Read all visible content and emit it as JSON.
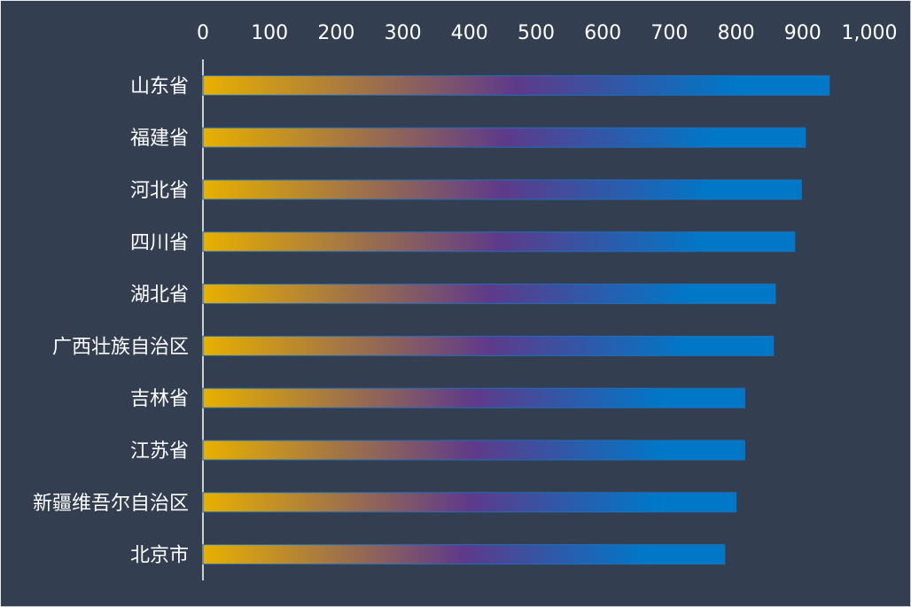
{
  "chart_data": {
    "type": "bar",
    "orientation": "horizontal",
    "categories": [
      "山东省",
      "福建省",
      "河北省",
      "四川省",
      "湖北省",
      "广西壮族自治区",
      "吉林省",
      "江苏省",
      "新疆维吾尔自治区",
      "北京市"
    ],
    "values": [
      940,
      904,
      898,
      888,
      859,
      856,
      813,
      813,
      800,
      783
    ],
    "xlim": [
      0,
      1000
    ],
    "xticks": [
      "0",
      "100",
      "200",
      "300",
      "400",
      "500",
      "600",
      "700",
      "800",
      "900",
      "1,000"
    ],
    "xaxis_position": "top",
    "grid": false,
    "legend": "none",
    "gradient_colors": [
      "#e8b000",
      "#5e3a8a",
      "#0078c8"
    ]
  }
}
